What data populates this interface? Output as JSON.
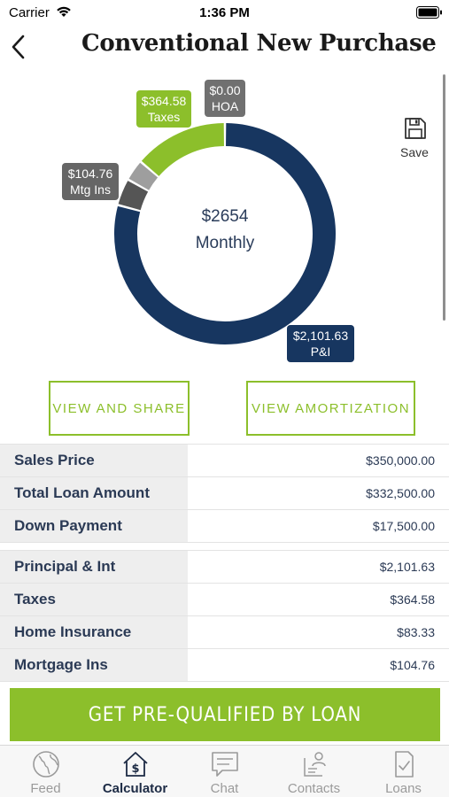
{
  "status_bar": {
    "carrier": "Carrier",
    "time": "1:36 PM"
  },
  "header": {
    "title": "Conventional New Purchase"
  },
  "chart_data": {
    "type": "pie",
    "center_amount": "$2654",
    "center_label": "Monthly",
    "slices": [
      {
        "name": "P&I",
        "value": 2101.63,
        "label": "$2,101.63",
        "color": "#173660"
      },
      {
        "name": "Mtg Ins",
        "value": 104.76,
        "label": "$104.76",
        "color": "#555555"
      },
      {
        "name": "Home Insurance",
        "value": 83.33,
        "color": "#9e9e9e"
      },
      {
        "name": "Taxes",
        "value": 364.58,
        "label": "$364.58",
        "color": "#8cbf2b"
      },
      {
        "name": "HOA",
        "value": 0.0,
        "label": "$0.00",
        "color": "#707070"
      }
    ]
  },
  "callouts": {
    "hoa": {
      "amount": "$0.00",
      "name": "HOA"
    },
    "taxes": {
      "amount": "$364.58",
      "name": "Taxes"
    },
    "mtg": {
      "amount": "$104.76",
      "name": "Mtg Ins"
    },
    "pi": {
      "amount": "$2,101.63",
      "name": "P&I"
    }
  },
  "save_label": "Save",
  "buttons": {
    "view_share": "VIEW AND SHARE",
    "view_amortization": "VIEW AMORTIZATION"
  },
  "loan_summary": [
    {
      "label": "Sales Price",
      "value": "$350,000.00"
    },
    {
      "label": "Total Loan Amount",
      "value": "$332,500.00"
    },
    {
      "label": "Down Payment",
      "value": "$17,500.00"
    }
  ],
  "payment_breakdown": [
    {
      "label": "Principal & Int",
      "value": "$2,101.63"
    },
    {
      "label": "Taxes",
      "value": "$364.58"
    },
    {
      "label": "Home Insurance",
      "value": "$83.33"
    },
    {
      "label": "Mortgage Ins",
      "value": "$104.76"
    }
  ],
  "cta": {
    "label": "GET PRE-QUALIFIED BY LOAN"
  },
  "tabs": [
    {
      "label": "Feed",
      "icon": "globe-icon"
    },
    {
      "label": "Calculator",
      "icon": "calculator-house-icon"
    },
    {
      "label": "Chat",
      "icon": "chat-icon"
    },
    {
      "label": "Contacts",
      "icon": "contacts-icon"
    },
    {
      "label": "Loans",
      "icon": "loans-icon"
    }
  ],
  "colors": {
    "accent": "#8cbf2b",
    "navy": "#173660"
  }
}
